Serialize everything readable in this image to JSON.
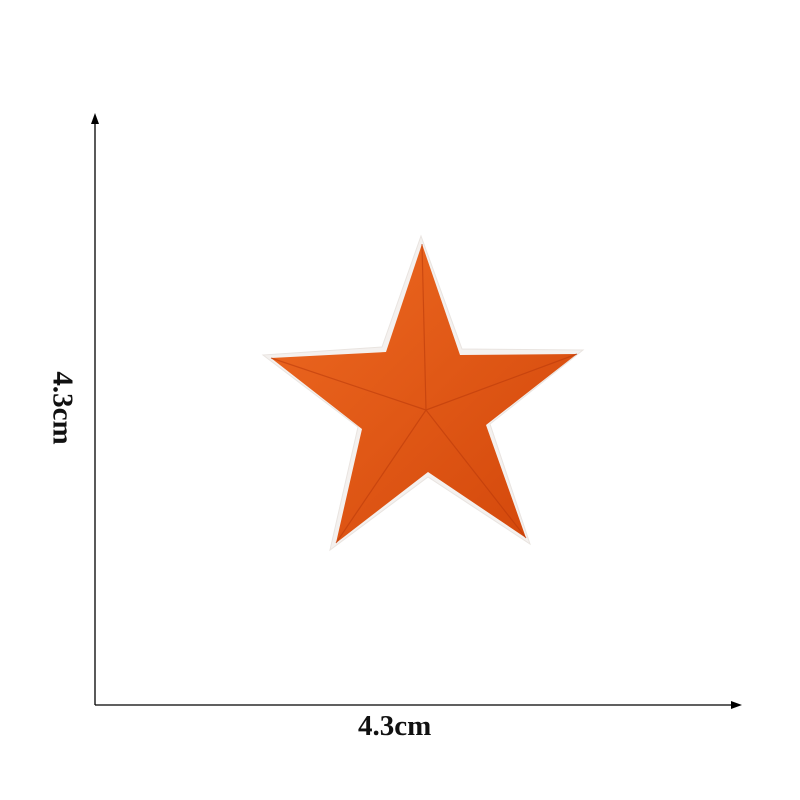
{
  "dimensions": {
    "width_label": "4.3cm",
    "height_label": "4.3cm"
  },
  "product": {
    "shape": "five-point star embroidered patch",
    "color": "#e2520f",
    "border_color": "#f4f1ef"
  },
  "colors": {
    "axis": "#000000",
    "background": "#ffffff"
  }
}
